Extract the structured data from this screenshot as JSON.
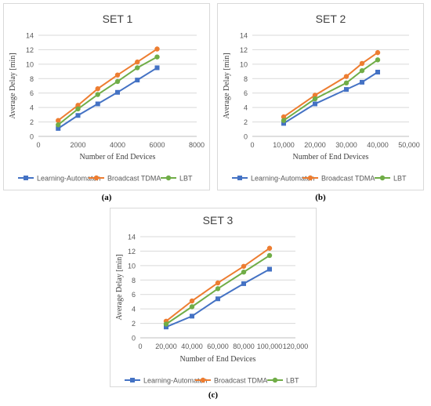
{
  "figure": {
    "captions": [
      "(a)",
      "(b)",
      "(c)"
    ]
  },
  "colors": {
    "learning_automaton": "#4472C4",
    "broadcast_tdma": "#ED7D31",
    "lbt": "#70AD47",
    "gridline": "#d9d9d9",
    "axis_text": "#595959"
  },
  "chart_data": [
    {
      "type": "line",
      "title": "SET 1",
      "xlabel": "Number of End Devices",
      "ylabel": "Average Delay [min]",
      "xlim": [
        0,
        8000
      ],
      "ylim": [
        0,
        14
      ],
      "xticks": [
        "0",
        "2000",
        "4000",
        "6000",
        "8000"
      ],
      "yticks": [
        "0",
        "2",
        "4",
        "6",
        "8",
        "10",
        "12",
        "14"
      ],
      "grid": "horizontal",
      "legend_position": "bottom",
      "x": [
        1000,
        2000,
        3000,
        4000,
        5000,
        6000
      ],
      "series": [
        {
          "name": "Learning-Automaton",
          "marker": "square",
          "values": [
            1.1,
            2.9,
            4.5,
            6.1,
            7.8,
            9.5
          ]
        },
        {
          "name": "Broadcast TDMA",
          "marker": "circle",
          "values": [
            2.2,
            4.3,
            6.6,
            8.5,
            10.3,
            12.1
          ]
        },
        {
          "name": "LBT",
          "marker": "circle",
          "values": [
            1.6,
            3.8,
            5.8,
            7.6,
            9.5,
            11.0
          ]
        }
      ]
    },
    {
      "type": "line",
      "title": "SET 2",
      "xlabel": "Number of End Devices",
      "ylabel": "Average Delay [min]",
      "xlim": [
        0,
        50000
      ],
      "ylim": [
        0,
        14
      ],
      "xticks": [
        "0",
        "10,000",
        "20,000",
        "30,000",
        "40,000",
        "50,000"
      ],
      "yticks": [
        "0",
        "2",
        "4",
        "6",
        "8",
        "10",
        "12",
        "14"
      ],
      "grid": "horizontal",
      "legend_position": "bottom",
      "x": [
        10000,
        20000,
        30000,
        35000,
        40000
      ],
      "series": [
        {
          "name": "Learning-Automaton",
          "marker": "square",
          "values": [
            1.8,
            4.5,
            6.5,
            7.5,
            8.9
          ]
        },
        {
          "name": "Broadcast TDMA",
          "marker": "circle",
          "values": [
            2.7,
            5.7,
            8.3,
            10.1,
            11.6
          ]
        },
        {
          "name": "LBT",
          "marker": "circle",
          "values": [
            2.2,
            5.2,
            7.4,
            9.1,
            10.6
          ]
        }
      ]
    },
    {
      "type": "line",
      "title": "SET 3",
      "xlabel": "Number of End Devices",
      "ylabel": "Average Delay [min]",
      "xlim": [
        0,
        120000
      ],
      "ylim": [
        0,
        14
      ],
      "xticks": [
        "0",
        "20,000",
        "40,000",
        "60,000",
        "80,000",
        "100,000",
        "120,000"
      ],
      "yticks": [
        "0",
        "2",
        "4",
        "6",
        "8",
        "10",
        "12",
        "14"
      ],
      "grid": "horizontal",
      "legend_position": "bottom",
      "x": [
        20000,
        40000,
        60000,
        80000,
        100000
      ],
      "series": [
        {
          "name": "Learning-Automaton",
          "marker": "square",
          "values": [
            1.5,
            3.0,
            5.4,
            7.5,
            9.5
          ]
        },
        {
          "name": "Broadcast TDMA",
          "marker": "circle",
          "values": [
            2.3,
            5.1,
            7.6,
            9.9,
            12.4
          ]
        },
        {
          "name": "LBT",
          "marker": "circle",
          "values": [
            1.9,
            4.3,
            6.8,
            9.1,
            11.4
          ]
        }
      ]
    }
  ]
}
